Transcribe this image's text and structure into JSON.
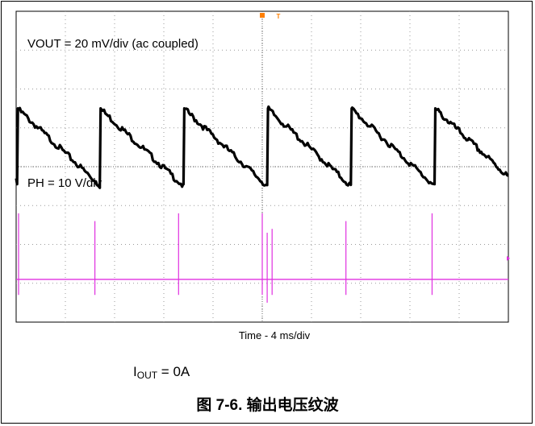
{
  "chart_data": {
    "type": "line",
    "xlabel": "Time - 4 ms/div",
    "grid": true,
    "divisions": {
      "x": 10,
      "y": 8
    },
    "trigger_marker": "T",
    "channels": [
      {
        "label": "VOUT = 20 mV/div (ac coupled)",
        "color": "#000000",
        "waveform": "sawtooth",
        "period_div": 1.7,
        "reset_times_div": [
          0.02,
          1.7,
          3.4,
          5.1,
          6.8,
          8.5
        ],
        "peak_div": 1.5,
        "valley_div": -0.5
      },
      {
        "label": "PH = 10 V/div",
        "color": "#e030e0",
        "waveform": "pulses",
        "baseline_div": -2.9,
        "spike_times_div": [
          0.0,
          1.6,
          3.3,
          5.0,
          5.1,
          5.2,
          6.7,
          8.45
        ],
        "spike_peak_div": [
          -1.2,
          -1.4,
          -1.2,
          -1.2,
          -1.7,
          -1.6,
          -1.4,
          -1.2
        ],
        "spike_low_div": [
          -3.3,
          -3.3,
          -3.3,
          -3.3,
          -3.5,
          -3.3,
          -3.3,
          -3.3
        ]
      }
    ]
  },
  "iout": {
    "prefix": "I",
    "sub": "OUT",
    "suffix": " = 0A"
  },
  "figure_caption": "图 7-6. 输出电压纹波"
}
